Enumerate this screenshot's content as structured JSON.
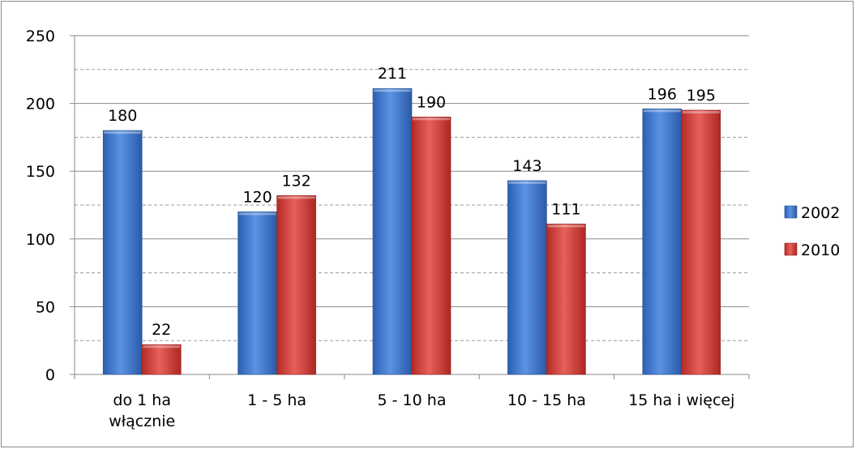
{
  "chart_data": {
    "type": "bar",
    "title": "",
    "xlabel": "",
    "ylabel": "",
    "ylim": [
      0,
      250
    ],
    "yticks": [
      0,
      50,
      100,
      150,
      200,
      250
    ],
    "categories": [
      [
        "do 1 ha",
        "włącznie"
      ],
      [
        "1 - 5 ha"
      ],
      [
        "5 - 10 ha"
      ],
      [
        "10 - 15 ha"
      ],
      [
        "15 ha i więcej"
      ]
    ],
    "series": [
      {
        "name": "2002",
        "values": [
          180,
          120,
          211,
          143,
          196
        ],
        "color": "#3e76d0"
      },
      {
        "name": "2010",
        "values": [
          22,
          132,
          190,
          111,
          195
        ],
        "color": "#d63b37"
      }
    ],
    "grid": {
      "major": "solid",
      "minor": "dashed"
    },
    "legend_position": "right"
  }
}
